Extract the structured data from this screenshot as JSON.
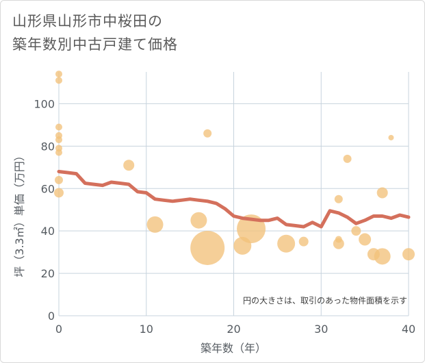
{
  "title_line1": "山形県山形市中桜田の",
  "title_line2": "築年数別中古戸建て価格",
  "colors": {
    "line": "#d4705c",
    "bubble": "#f2c27b",
    "grid": "#c7d3dd",
    "axis": "#555b61"
  },
  "chart_data": {
    "type": "scatter",
    "xlabel": "築年数（年）",
    "ylabel": "坪（3.3㎡）単価（万円）",
    "xlim": [
      0,
      40
    ],
    "ylim": [
      0,
      115
    ],
    "xticks": [
      0,
      10,
      20,
      30,
      40
    ],
    "yticks": [
      0,
      20,
      40,
      60,
      80,
      100
    ],
    "grid": true,
    "annotation": "円の大きさは、取引のあった物件面積を示す",
    "series": [
      {
        "type": "line",
        "color": "#d4705c",
        "x": [
          0,
          1,
          2,
          3,
          4,
          5,
          6,
          7,
          8,
          9,
          10,
          11,
          12,
          13,
          14,
          15,
          16,
          17,
          18,
          19,
          20,
          21,
          22,
          23,
          24,
          25,
          26,
          27,
          28,
          29,
          30,
          31,
          32,
          33,
          34,
          35,
          36,
          37,
          38,
          39,
          40
        ],
        "y": [
          68,
          67.5,
          67,
          62.5,
          62,
          61.5,
          63,
          62.5,
          62,
          58.5,
          58,
          55,
          54.5,
          54,
          54.5,
          55,
          54.5,
          54,
          53,
          50.5,
          47,
          46,
          45.5,
          45,
          45,
          46,
          43,
          42.5,
          42,
          44,
          42,
          49.5,
          48.5,
          46.5,
          43.5,
          45,
          47,
          47,
          46,
          47.5,
          46.5
        ]
      },
      {
        "type": "bubble",
        "color": "#f2c27b",
        "points": [
          {
            "x": 0,
            "y": 114,
            "s": 5
          },
          {
            "x": 0,
            "y": 111,
            "s": 5
          },
          {
            "x": 0,
            "y": 89,
            "s": 5
          },
          {
            "x": 0,
            "y": 85,
            "s": 5
          },
          {
            "x": 0,
            "y": 83,
            "s": 5
          },
          {
            "x": 0,
            "y": 79,
            "s": 5
          },
          {
            "x": 0,
            "y": 77,
            "s": 5
          },
          {
            "x": 0,
            "y": 64,
            "s": 6
          },
          {
            "x": 0,
            "y": 58,
            "s": 7
          },
          {
            "x": 8,
            "y": 71,
            "s": 8
          },
          {
            "x": 11,
            "y": 43,
            "s": 12
          },
          {
            "x": 16,
            "y": 45,
            "s": 12
          },
          {
            "x": 17,
            "y": 86,
            "s": 6
          },
          {
            "x": 17,
            "y": 32,
            "s": 25
          },
          {
            "x": 21,
            "y": 33,
            "s": 13
          },
          {
            "x": 22,
            "y": 41,
            "s": 21
          },
          {
            "x": 26,
            "y": 34,
            "s": 13
          },
          {
            "x": 28,
            "y": 35,
            "s": 7
          },
          {
            "x": 32,
            "y": 55,
            "s": 6
          },
          {
            "x": 32,
            "y": 36,
            "s": 5
          },
          {
            "x": 32,
            "y": 34,
            "s": 8
          },
          {
            "x": 33,
            "y": 74,
            "s": 6
          },
          {
            "x": 34,
            "y": 40,
            "s": 7
          },
          {
            "x": 35,
            "y": 36,
            "s": 9
          },
          {
            "x": 36,
            "y": 29,
            "s": 9
          },
          {
            "x": 37,
            "y": 58,
            "s": 8
          },
          {
            "x": 37,
            "y": 28,
            "s": 12
          },
          {
            "x": 38,
            "y": 84,
            "s": 4
          },
          {
            "x": 40,
            "y": 29,
            "s": 9
          }
        ]
      }
    ]
  }
}
